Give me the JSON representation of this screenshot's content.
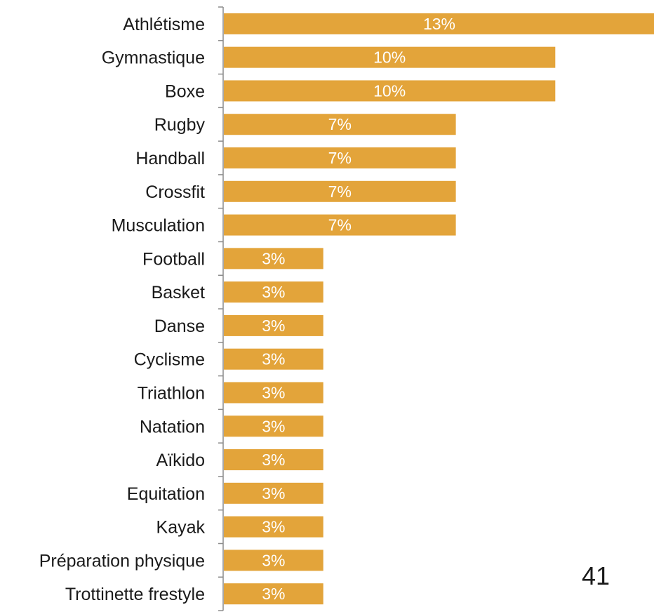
{
  "chart_data": {
    "type": "bar",
    "orientation": "horizontal",
    "categories": [
      "Athlétisme",
      "Gymnastique",
      "Boxe",
      "Rugby",
      "Handball",
      "Crossfit",
      "Musculation",
      "Football",
      "Basket",
      "Danse",
      "Cyclisme",
      "Triathlon",
      "Natation",
      "Aïkido",
      "Equitation",
      "Kayak",
      "Préparation physique",
      "Trottinette frestyle"
    ],
    "values": [
      13,
      10,
      10,
      7,
      7,
      7,
      7,
      3,
      3,
      3,
      3,
      3,
      3,
      3,
      3,
      3,
      3,
      3
    ],
    "data_labels": [
      "13%",
      "10%",
      "10%",
      "7%",
      "7%",
      "7%",
      "7%",
      "3%",
      "3%",
      "3%",
      "3%",
      "3%",
      "3%",
      "3%",
      "3%",
      "3%",
      "3%",
      "3%"
    ],
    "title": "",
    "xlabel": "",
    "ylabel": "",
    "xlim": [
      0,
      13
    ],
    "grid": false,
    "legend": "none",
    "bar_color": "#E3A43A",
    "axis_color": "#8c8c8c"
  },
  "page_number": "41"
}
